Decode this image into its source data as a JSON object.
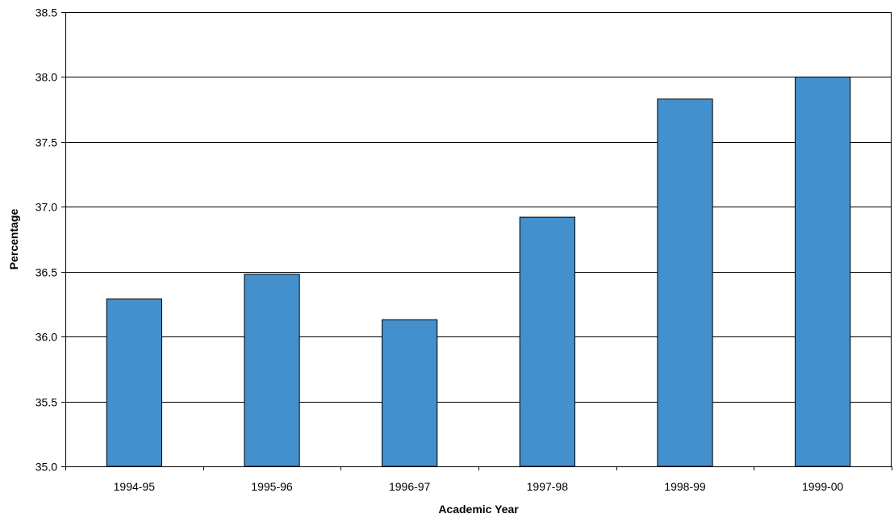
{
  "chart_data": {
    "type": "bar",
    "categories": [
      "1994-95",
      "1995-96",
      "1996-97",
      "1997-98",
      "1998-99",
      "1999-00"
    ],
    "values": [
      36.29,
      36.48,
      36.13,
      36.92,
      37.83,
      38.0
    ],
    "xlabel": "Academic Year",
    "ylabel": "Percentage",
    "ylim": [
      35.0,
      38.5
    ],
    "yticks": [
      "35.0",
      "35.5",
      "36.0",
      "36.5",
      "37.0",
      "37.5",
      "38.0",
      "38.5"
    ],
    "grid": true,
    "bar_color": "#4490cd"
  }
}
